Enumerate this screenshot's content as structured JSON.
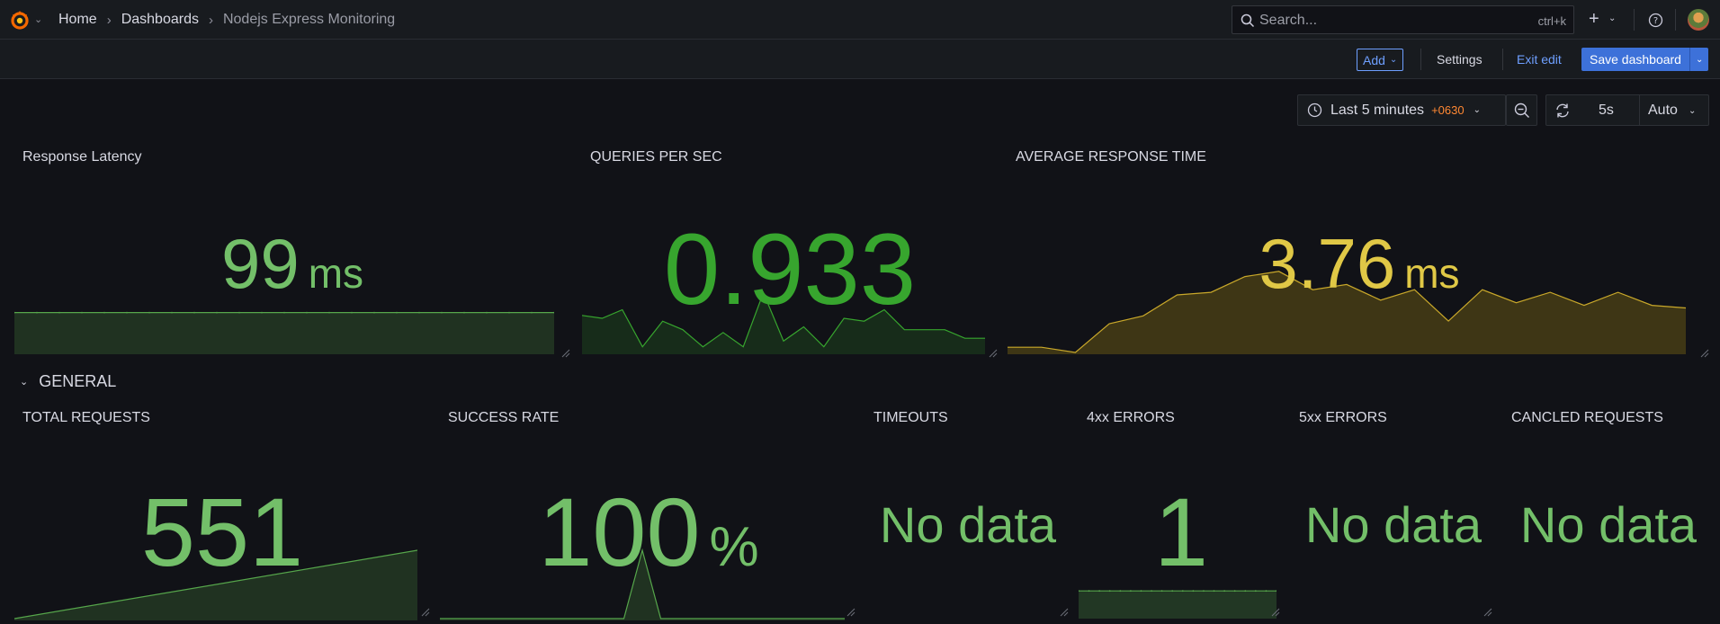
{
  "header": {
    "breadcrumbs": [
      {
        "label": "Home"
      },
      {
        "label": "Dashboards"
      },
      {
        "label": "Nodejs Express Monitoring"
      }
    ],
    "search": {
      "placeholder": "Search...",
      "shortcut": "ctrl+k"
    }
  },
  "toolbar": {
    "add_label": "Add",
    "settings_label": "Settings",
    "exit_edit_label": "Exit edit",
    "save_label": "Save dashboard"
  },
  "time": {
    "range_label": "Last 5 minutes",
    "timezone": "+0630",
    "refresh_interval": "5s",
    "refresh_mode": "Auto"
  },
  "row": {
    "title": "GENERAL"
  },
  "panels": {
    "latency": {
      "title": "Response Latency",
      "value": "99",
      "unit": "ms"
    },
    "qps": {
      "title": "QUERIES PER SEC",
      "value": "0.933"
    },
    "avg": {
      "title": "AVERAGE RESPONSE TIME",
      "value": "3.76",
      "unit": "ms"
    },
    "total": {
      "title": "TOTAL REQUESTS",
      "value": "551"
    },
    "success": {
      "title": "SUCCESS RATE",
      "value": "100",
      "unit": "%"
    },
    "timeouts": {
      "title": "TIMEOUTS",
      "value": "No data"
    },
    "e4xx": {
      "title": "4xx ERRORS",
      "value": "1"
    },
    "e5xx": {
      "title": "5xx ERRORS",
      "value": "No data"
    },
    "canceled": {
      "title": "CANCLED REQUESTS",
      "value": "No data"
    }
  },
  "series": {
    "latency": [
      99,
      99,
      99,
      99,
      99,
      99,
      99,
      99,
      99,
      99,
      99,
      99,
      99,
      99,
      99,
      99,
      99,
      99,
      99,
      99,
      99,
      99,
      99,
      99,
      99
    ],
    "qps": [
      0.9,
      0.85,
      1.0,
      0.35,
      0.8,
      0.65,
      0.35,
      0.6,
      0.35,
      1.3,
      0.45,
      0.7,
      0.35,
      0.85,
      0.8,
      1.0,
      0.65,
      0.65,
      0.65,
      0.5,
      0.5
    ],
    "avg": [
      0.2,
      0.2,
      0.0,
      1.1,
      1.4,
      2.2,
      2.3,
      2.9,
      3.1,
      2.4,
      2.6,
      2.0,
      2.4,
      1.2,
      2.4,
      1.9,
      2.3,
      1.8,
      2.3,
      1.8,
      1.7
    ],
    "total": [
      0,
      551
    ],
    "success": [
      0,
      0,
      0,
      0,
      0,
      0,
      0,
      0,
      0,
      0,
      0,
      100,
      0,
      0,
      0,
      0,
      0,
      0,
      0,
      0,
      0,
      0,
      0
    ],
    "e4xx": [
      1,
      1,
      1,
      1,
      1,
      1,
      1,
      1,
      1,
      1,
      1,
      1,
      1,
      1,
      1,
      1,
      1,
      1,
      1,
      1
    ]
  },
  "colors": {
    "green": "#73bf69",
    "dark_green": "#37872d",
    "yellow": "#e0b400",
    "link_blue": "#6e9fff",
    "primary_blue": "#3d71d9",
    "tz_orange": "#ff8833"
  }
}
